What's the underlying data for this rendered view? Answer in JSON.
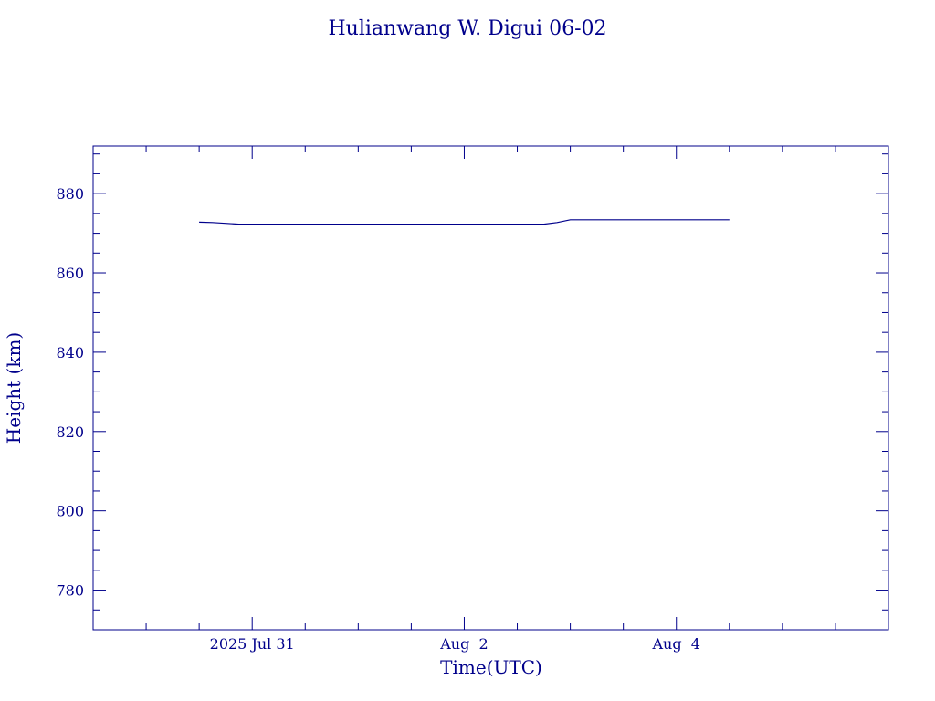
{
  "chart_data": {
    "type": "line",
    "title": "Hulianwang W. Digui 06-02",
    "xlabel": "Time(UTC)",
    "ylabel": "Height (km)",
    "x_axis": {
      "type": "date",
      "range": [
        "2025-07-29T12:00",
        "2025-08-06T00:00"
      ],
      "major_ticks": [
        {
          "value": "2025-07-31T00:00",
          "label": "2025 Jul 31"
        },
        {
          "value": "2025-08-02T00:00",
          "label": "Aug  2"
        },
        {
          "value": "2025-08-04T00:00",
          "label": "Aug  4"
        }
      ],
      "minor_tick_hours": 12
    },
    "y_axis": {
      "range": [
        770,
        892
      ],
      "major_ticks": [
        780,
        800,
        820,
        840,
        860,
        880
      ],
      "minor_step": 5
    },
    "series": [
      {
        "color": "#00008b",
        "points": [
          {
            "x": "2025-07-30T12:00",
            "y": 872.8
          },
          {
            "x": "2025-07-30T15:00",
            "y": 872.7
          },
          {
            "x": "2025-07-30T21:00",
            "y": 872.3
          },
          {
            "x": "2025-07-31T06:00",
            "y": 872.3
          },
          {
            "x": "2025-08-01T00:00",
            "y": 872.3
          },
          {
            "x": "2025-08-02T00:00",
            "y": 872.3
          },
          {
            "x": "2025-08-02T18:00",
            "y": 872.3
          },
          {
            "x": "2025-08-02T21:00",
            "y": 872.7
          },
          {
            "x": "2025-08-03T00:00",
            "y": 873.4
          },
          {
            "x": "2025-08-04T00:00",
            "y": 873.4
          },
          {
            "x": "2025-08-04T12:00",
            "y": 873.4
          }
        ]
      }
    ],
    "colors": {
      "axis": "#00008b",
      "text": "#00008b",
      "background": "#ffffff"
    },
    "grid": false
  }
}
